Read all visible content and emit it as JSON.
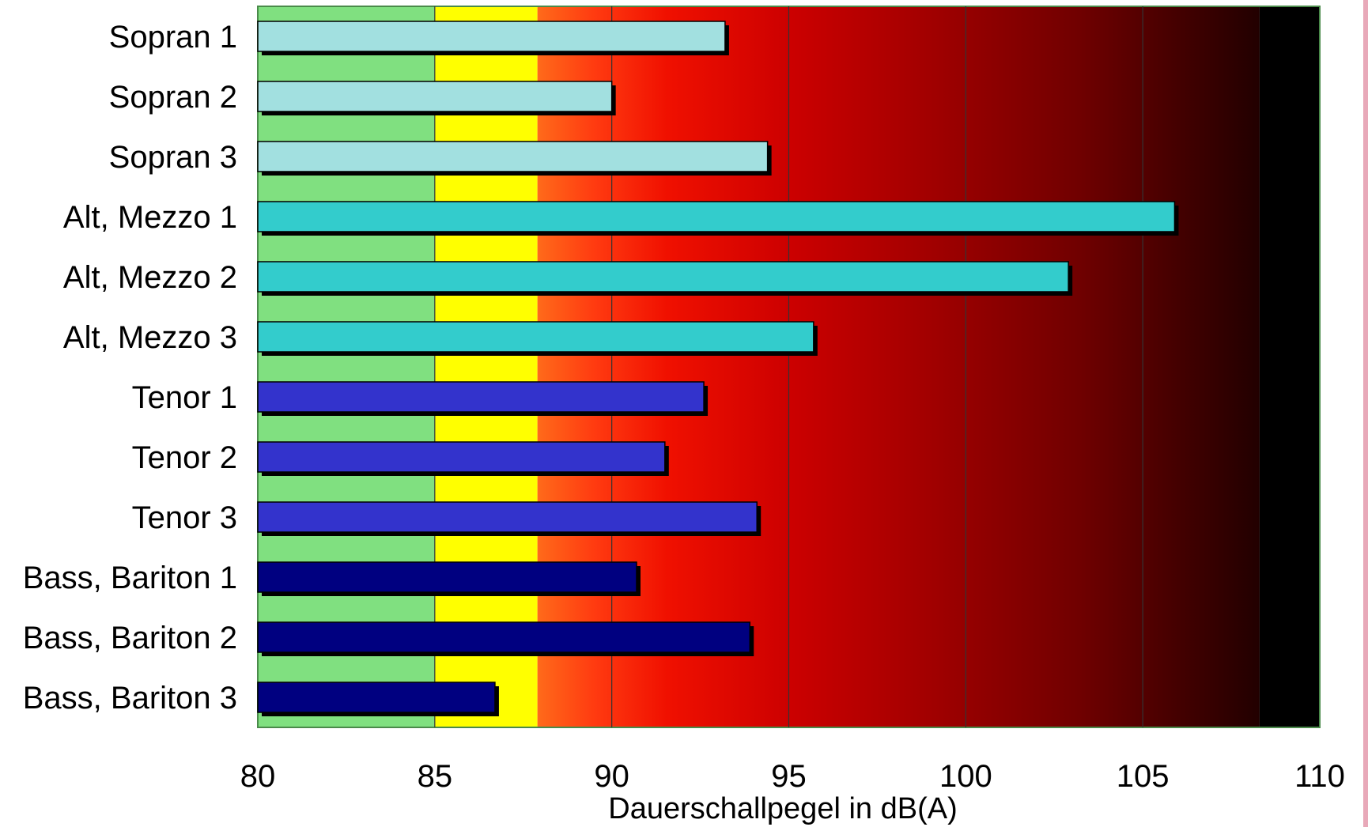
{
  "chart_data": {
    "type": "bar",
    "orientation": "horizontal",
    "title": "",
    "xlabel": "Dauerschallpegel in dB(A)",
    "ylabel": "",
    "xlim": [
      80,
      110
    ],
    "x_ticks": [
      "80",
      "85",
      "90",
      "95",
      "100",
      "105",
      "110"
    ],
    "grid": "vertical lines at 85, 90, 95, 100, 105",
    "background_zones": [
      {
        "from": 80,
        "to": 85,
        "color": "#80e080"
      },
      {
        "from": 85,
        "to": 87.9,
        "color": "#ffff00"
      },
      {
        "from": 87.9,
        "to": 108.3,
        "color": "gradient orange-red to dark red"
      },
      {
        "from": 108.3,
        "to": 110,
        "color": "#000000"
      }
    ],
    "categories": [
      "Sopran 1",
      "Sopran 2",
      "Sopran 3",
      "Alt, Mezzo 1",
      "Alt, Mezzo 2",
      "Alt, Mezzo 3",
      "Tenor 1",
      "Tenor 2",
      "Tenor 3",
      "Bass, Bariton 1",
      "Bass, Bariton 2",
      "Bass, Bariton 3"
    ],
    "values": [
      93.2,
      90.0,
      94.4,
      105.9,
      102.9,
      95.7,
      92.6,
      91.5,
      94.1,
      90.7,
      93.9,
      86.7
    ],
    "bar_colors": [
      "#a2e0e0",
      "#a2e0e0",
      "#a2e0e0",
      "#33cccc",
      "#33cccc",
      "#33cccc",
      "#3333cc",
      "#3333cc",
      "#3333cc",
      "#000080",
      "#000080",
      "#000080"
    ]
  }
}
